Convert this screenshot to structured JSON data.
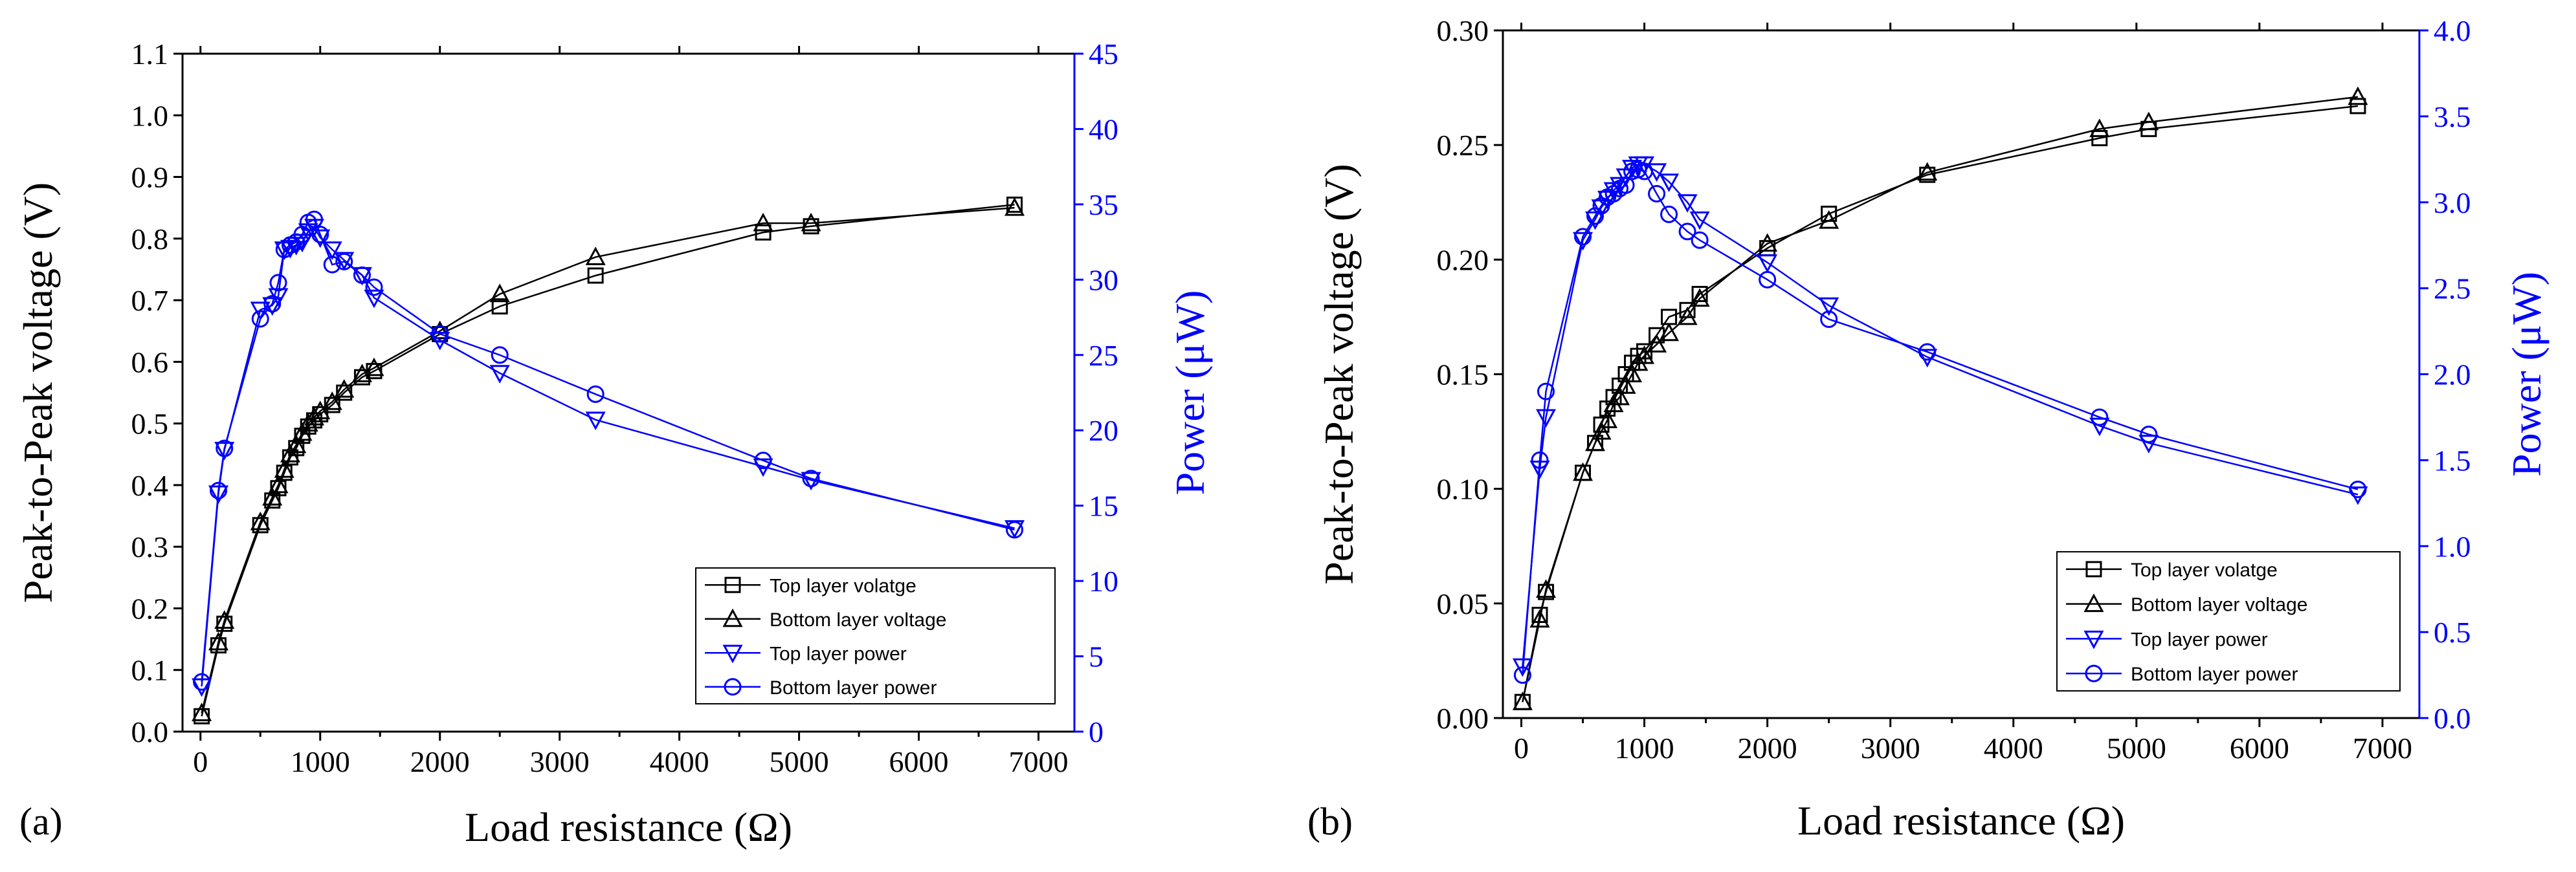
{
  "chart_data": [
    {
      "type": "line",
      "panel_label": "(a)",
      "xlabel": "Load resistance (Ω)",
      "ylabel": "Peak-to-Peak voltage (V)",
      "y2label": "Power (μW)",
      "xlim": [
        -150,
        7300
      ],
      "ylim": [
        0,
        1.1
      ],
      "y2lim": [
        0,
        45
      ],
      "xticks": [
        "0",
        "1000",
        "2000",
        "3000",
        "4000",
        "5000",
        "6000",
        "7000"
      ],
      "yticks": [
        "0.0",
        "0.1",
        "0.2",
        "0.3",
        "0.4",
        "0.5",
        "0.6",
        "0.7",
        "0.8",
        "0.9",
        "1.0",
        "1.1"
      ],
      "y2ticks": [
        "0",
        "5",
        "10",
        "15",
        "20",
        "25",
        "30",
        "35",
        "40",
        "45"
      ],
      "legend_position": "lower-right",
      "series": [
        {
          "name": "Top layer volatge",
          "axis": "left",
          "color": "#000000",
          "marker": "square",
          "x": [
            10,
            150,
            200,
            500,
            600,
            650,
            700,
            750,
            800,
            850,
            900,
            950,
            1000,
            1100,
            1200,
            1350,
            1450,
            2000,
            2500,
            3300,
            4700,
            5100,
            6800
          ],
          "y": [
            0.025,
            0.14,
            0.175,
            0.335,
            0.375,
            0.395,
            0.42,
            0.445,
            0.46,
            0.48,
            0.495,
            0.505,
            0.515,
            0.53,
            0.55,
            0.575,
            0.585,
            0.645,
            0.69,
            0.74,
            0.81,
            0.82,
            0.855
          ]
        },
        {
          "name": "Bottom layer voltage",
          "axis": "left",
          "color": "#000000",
          "marker": "triangle-up",
          "x": [
            10,
            150,
            200,
            500,
            600,
            650,
            700,
            750,
            800,
            850,
            900,
            950,
            1000,
            1100,
            1200,
            1350,
            1450,
            2000,
            2500,
            3300,
            4700,
            5100,
            6800
          ],
          "y": [
            0.03,
            0.145,
            0.18,
            0.34,
            0.38,
            0.4,
            0.425,
            0.45,
            0.465,
            0.485,
            0.5,
            0.51,
            0.52,
            0.535,
            0.555,
            0.58,
            0.59,
            0.65,
            0.71,
            0.77,
            0.825,
            0.825,
            0.85
          ]
        },
        {
          "name": "Top layer power",
          "axis": "right",
          "color": "#0000ff",
          "marker": "triangle-down",
          "x": [
            10,
            150,
            200,
            500,
            600,
            650,
            700,
            750,
            800,
            850,
            900,
            950,
            1000,
            1100,
            1200,
            1350,
            1450,
            2000,
            2500,
            3300,
            4700,
            5100,
            6800
          ],
          "y": [
            3.0,
            15.8,
            18.7,
            28.0,
            28.3,
            28.9,
            32.0,
            32.1,
            32.3,
            32.5,
            33.2,
            33.5,
            32.8,
            32.0,
            31.3,
            30.3,
            28.8,
            26.0,
            23.8,
            20.7,
            17.6,
            16.7,
            13.5
          ]
        },
        {
          "name": "Bottom layer power",
          "axis": "right",
          "color": "#0000ff",
          "marker": "circle",
          "x": [
            10,
            150,
            200,
            500,
            600,
            650,
            700,
            750,
            800,
            850,
            900,
            950,
            1000,
            1100,
            1200,
            1350,
            1450,
            2000,
            2500,
            3300,
            4700,
            5100,
            6800
          ],
          "y": [
            3.3,
            16.0,
            18.8,
            27.4,
            28.4,
            29.8,
            32.0,
            32.3,
            32.5,
            33.0,
            33.8,
            34.0,
            33.0,
            31.0,
            31.2,
            30.3,
            29.5,
            26.4,
            25.0,
            22.4,
            18.0,
            16.8,
            13.4
          ]
        }
      ]
    },
    {
      "type": "line",
      "panel_label": "(b)",
      "xlabel": "Load resistance (Ω)",
      "ylabel": "Peak-to-Peak voltage (V)",
      "y2label": "Power (μW)",
      "xlim": [
        -150,
        7300
      ],
      "ylim": [
        0,
        0.3
      ],
      "y2lim": [
        0,
        4.0
      ],
      "xticks": [
        "0",
        "1000",
        "2000",
        "3000",
        "4000",
        "5000",
        "6000",
        "7000"
      ],
      "yticks": [
        "0.00",
        "0.05",
        "0.10",
        "0.15",
        "0.20",
        "0.25",
        "0.30"
      ],
      "y2ticks": [
        "0.0",
        "0.5",
        "1.0",
        "1.5",
        "2.0",
        "2.5",
        "3.0",
        "3.5",
        "4.0"
      ],
      "legend_position": "lower-right",
      "series": [
        {
          "name": "Top layer volatge",
          "axis": "left",
          "color": "#000000",
          "marker": "square",
          "x": [
            10,
            150,
            200,
            500,
            600,
            650,
            700,
            750,
            800,
            850,
            900,
            950,
            1000,
            1100,
            1200,
            1350,
            1450,
            2000,
            2500,
            3300,
            4700,
            5100,
            6800
          ],
          "y": [
            0.007,
            0.045,
            0.055,
            0.107,
            0.12,
            0.128,
            0.135,
            0.14,
            0.145,
            0.15,
            0.155,
            0.158,
            0.16,
            0.167,
            0.175,
            0.178,
            0.185,
            0.205,
            0.22,
            0.237,
            0.253,
            0.257,
            0.267
          ]
        },
        {
          "name": "Bottom layer voltage",
          "axis": "left",
          "color": "#000000",
          "marker": "triangle-up",
          "x": [
            10,
            150,
            200,
            500,
            600,
            650,
            700,
            750,
            800,
            850,
            900,
            950,
            1000,
            1100,
            1200,
            1350,
            1450,
            2000,
            2500,
            3300,
            4700,
            5100,
            6800
          ],
          "y": [
            0.007,
            0.043,
            0.056,
            0.107,
            0.12,
            0.125,
            0.13,
            0.137,
            0.14,
            0.145,
            0.15,
            0.155,
            0.158,
            0.163,
            0.168,
            0.175,
            0.183,
            0.207,
            0.217,
            0.238,
            0.257,
            0.26,
            0.271
          ]
        },
        {
          "name": "Top layer power",
          "axis": "right",
          "color": "#0000ff",
          "marker": "triangle-down",
          "x": [
            10,
            150,
            200,
            500,
            600,
            650,
            700,
            750,
            800,
            850,
            900,
            950,
            1000,
            1100,
            1200,
            1350,
            1450,
            2000,
            2500,
            3300,
            4700,
            5100,
            6800
          ],
          "y": [
            0.3,
            1.45,
            1.75,
            2.78,
            2.9,
            2.97,
            3.02,
            3.07,
            3.1,
            3.15,
            3.2,
            3.22,
            3.22,
            3.18,
            3.12,
            3.0,
            2.9,
            2.65,
            2.4,
            2.1,
            1.7,
            1.6,
            1.3
          ]
        },
        {
          "name": "Bottom layer power",
          "axis": "right",
          "color": "#0000ff",
          "marker": "circle",
          "x": [
            10,
            150,
            200,
            500,
            600,
            650,
            700,
            750,
            800,
            850,
            900,
            950,
            1000,
            1100,
            1200,
            1350,
            1450,
            2000,
            2500,
            3300,
            4700,
            5100,
            6800
          ],
          "y": [
            0.25,
            1.5,
            1.9,
            2.8,
            2.92,
            2.98,
            3.03,
            3.05,
            3.08,
            3.1,
            3.18,
            3.19,
            3.18,
            3.05,
            2.93,
            2.83,
            2.78,
            2.55,
            2.32,
            2.13,
            1.75,
            1.65,
            1.33
          ]
        }
      ]
    }
  ]
}
